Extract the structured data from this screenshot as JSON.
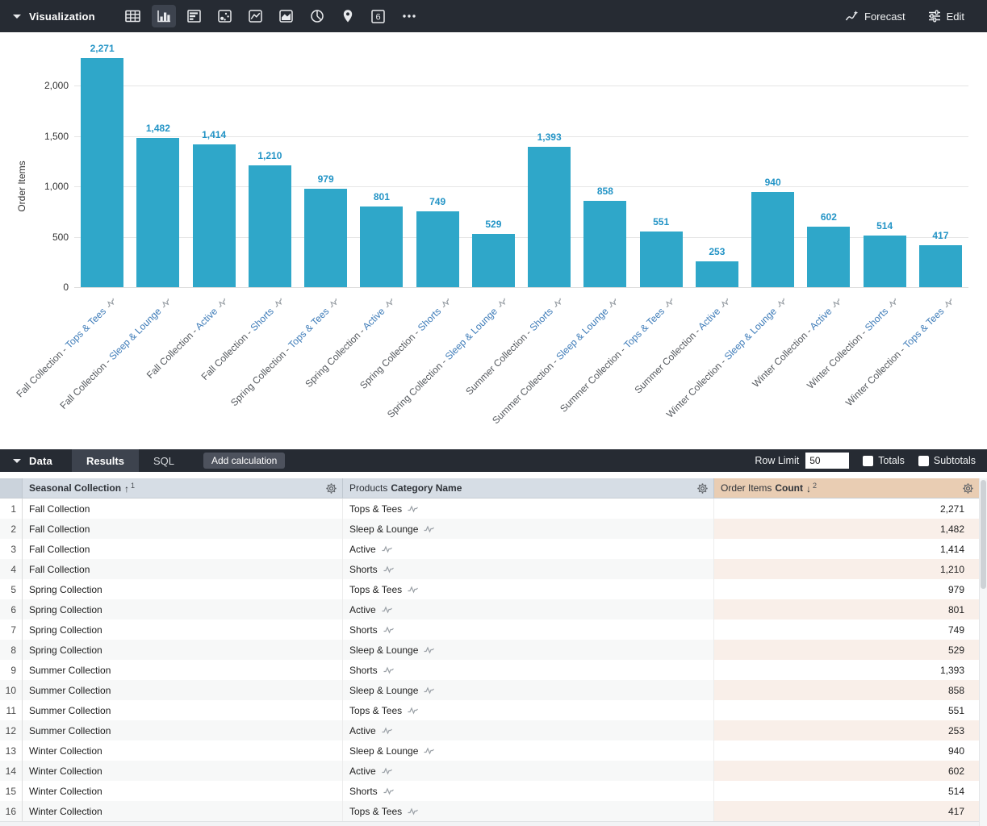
{
  "toolbar": {
    "title": "Visualization",
    "vis_types": [
      "table",
      "column",
      "bar",
      "scatter",
      "line",
      "area",
      "pie",
      "map",
      "single-value",
      "more"
    ],
    "selected_vis": "column",
    "forecast_label": "Forecast",
    "edit_label": "Edit"
  },
  "chart_data": {
    "type": "bar",
    "title": "",
    "xlabel": "",
    "ylabel": "Order Items",
    "ylim": [
      0,
      2350
    ],
    "grid": true,
    "bar_color": "#2fa7c9",
    "value_label_color": "#2394c6",
    "yticks": [
      {
        "value": 0,
        "label": "0"
      },
      {
        "value": 500,
        "label": "500"
      },
      {
        "value": 1000,
        "label": "1,000"
      },
      {
        "value": 1500,
        "label": "1,500"
      },
      {
        "value": 2000,
        "label": "2,000"
      }
    ],
    "categories": [
      "Fall Collection - Tops & Tees",
      "Fall Collection - Sleep & Lounge",
      "Fall Collection - Active",
      "Fall Collection - Shorts",
      "Spring Collection - Tops & Tees",
      "Spring Collection - Active",
      "Spring Collection - Shorts",
      "Spring Collection - Sleep & Lounge",
      "Summer Collection - Shorts",
      "Summer Collection - Sleep & Lounge",
      "Summer Collection - Tops & Tees",
      "Summer Collection - Active",
      "Winter Collection - Sleep & Lounge",
      "Winter Collection - Active",
      "Winter Collection - Shorts",
      "Winter Collection - Tops & Tees"
    ],
    "points": [
      {
        "collection": "Fall Collection",
        "category": "Tops & Tees",
        "value": 2271,
        "label": "2,271"
      },
      {
        "collection": "Fall Collection",
        "category": "Sleep & Lounge",
        "value": 1482,
        "label": "1,482"
      },
      {
        "collection": "Fall Collection",
        "category": "Active",
        "value": 1414,
        "label": "1,414"
      },
      {
        "collection": "Fall Collection",
        "category": "Shorts",
        "value": 1210,
        "label": "1,210"
      },
      {
        "collection": "Spring Collection",
        "category": "Tops & Tees",
        "value": 979,
        "label": "979"
      },
      {
        "collection": "Spring Collection",
        "category": "Active",
        "value": 801,
        "label": "801"
      },
      {
        "collection": "Spring Collection",
        "category": "Shorts",
        "value": 749,
        "label": "749"
      },
      {
        "collection": "Spring Collection",
        "category": "Sleep & Lounge",
        "value": 529,
        "label": "529"
      },
      {
        "collection": "Summer Collection",
        "category": "Shorts",
        "value": 1393,
        "label": "1,393"
      },
      {
        "collection": "Summer Collection",
        "category": "Sleep & Lounge",
        "value": 858,
        "label": "858"
      },
      {
        "collection": "Summer Collection",
        "category": "Tops & Tees",
        "value": 551,
        "label": "551"
      },
      {
        "collection": "Summer Collection",
        "category": "Active",
        "value": 253,
        "label": "253"
      },
      {
        "collection": "Winter Collection",
        "category": "Sleep & Lounge",
        "value": 940,
        "label": "940"
      },
      {
        "collection": "Winter Collection",
        "category": "Active",
        "value": 602,
        "label": "602"
      },
      {
        "collection": "Winter Collection",
        "category": "Shorts",
        "value": 514,
        "label": "514"
      },
      {
        "collection": "Winter Collection",
        "category": "Tops & Tees",
        "value": 417,
        "label": "417"
      }
    ]
  },
  "data_panel": {
    "title": "Data",
    "tabs": [
      {
        "label": "Results",
        "selected": true
      },
      {
        "label": "SQL",
        "selected": false
      }
    ],
    "add_calculation_label": "Add calculation",
    "row_limit_label": "Row Limit",
    "row_limit_value": "50",
    "totals_label": "Totals",
    "totals_checked": false,
    "subtotals_label": "Subtotals",
    "subtotals_checked": false
  },
  "table": {
    "columns": [
      {
        "view": "",
        "field": "Seasonal Collection",
        "sort_glyph": "↑",
        "sort_order": "1"
      },
      {
        "view": "Products",
        "field": "Category Name",
        "sort_glyph": "",
        "sort_order": ""
      },
      {
        "view": "Order Items",
        "field": "Count",
        "sort_glyph": "↓",
        "sort_order": "2"
      }
    ],
    "rows": [
      [
        "1",
        "Fall Collection",
        "Tops & Tees",
        "2,271"
      ],
      [
        "2",
        "Fall Collection",
        "Sleep & Lounge",
        "1,482"
      ],
      [
        "3",
        "Fall Collection",
        "Active",
        "1,414"
      ],
      [
        "4",
        "Fall Collection",
        "Shorts",
        "1,210"
      ],
      [
        "5",
        "Spring Collection",
        "Tops & Tees",
        "979"
      ],
      [
        "6",
        "Spring Collection",
        "Active",
        "801"
      ],
      [
        "7",
        "Spring Collection",
        "Shorts",
        "749"
      ],
      [
        "8",
        "Spring Collection",
        "Sleep & Lounge",
        "529"
      ],
      [
        "9",
        "Summer Collection",
        "Shorts",
        "1,393"
      ],
      [
        "10",
        "Summer Collection",
        "Sleep & Lounge",
        "858"
      ],
      [
        "11",
        "Summer Collection",
        "Tops & Tees",
        "551"
      ],
      [
        "12",
        "Summer Collection",
        "Active",
        "253"
      ],
      [
        "13",
        "Winter Collection",
        "Sleep & Lounge",
        "940"
      ],
      [
        "14",
        "Winter Collection",
        "Active",
        "602"
      ],
      [
        "15",
        "Winter Collection",
        "Shorts",
        "514"
      ],
      [
        "16",
        "Winter Collection",
        "Tops & Tees",
        "417"
      ]
    ]
  }
}
